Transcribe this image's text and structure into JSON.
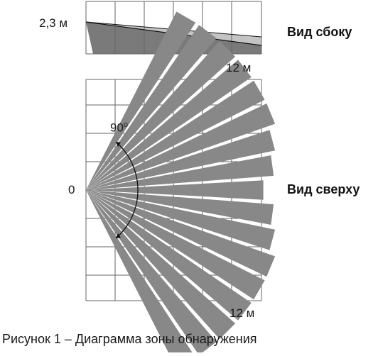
{
  "side_view": {
    "height_label": "2,3 м",
    "distance_label": "12 м",
    "title": "Вид сбоку"
  },
  "top_view": {
    "origin_label": "0",
    "angle_value": "90",
    "angle_unit": "o",
    "distance_label": "12 м",
    "title": "Вид сверху",
    "beam_count": 17
  },
  "caption": "Рисунок 1 – Диаграмма зоны обнаружения",
  "colors": {
    "grid": "#666666",
    "beam": "#888888",
    "dark_zone": "#7a7a7a",
    "light_zone": "#c4c4c4",
    "line": "#111111"
  }
}
